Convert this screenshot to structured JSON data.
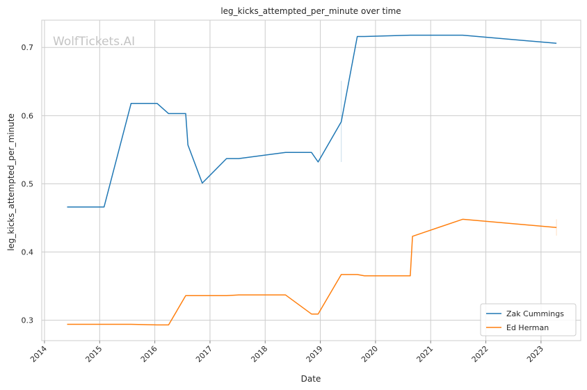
{
  "chart_data": {
    "type": "line",
    "title": "leg_kicks_attempted_per_minute over time",
    "xlabel": "Date",
    "ylabel": "leg_kicks_attempted_per_minute",
    "watermark": "WolfTickets.AI",
    "x_ticks": [
      "2014",
      "2015",
      "2016",
      "2017",
      "2018",
      "2019",
      "2020",
      "2021",
      "2022",
      "2023"
    ],
    "y_ticks": [
      "0.3",
      "0.4",
      "0.5",
      "0.6",
      "0.7"
    ],
    "xlim": [
      2013.95,
      2023.72
    ],
    "ylim": [
      0.27,
      0.74
    ],
    "grid": true,
    "legend_position": "bottom-right",
    "series": [
      {
        "name": "Zak Cummings",
        "color": "#1f77b4",
        "x": [
          2014.41,
          2015.08,
          2015.57,
          2016.04,
          2016.25,
          2016.56,
          2016.6,
          2016.86,
          2017.3,
          2017.52,
          2018.37,
          2018.84,
          2018.96,
          2019.38,
          2019.67,
          2019.8,
          2020.63,
          2021.58,
          2023.28
        ],
        "values": [
          0.466,
          0.466,
          0.618,
          0.618,
          0.603,
          0.603,
          0.557,
          0.501,
          0.537,
          0.537,
          0.546,
          0.546,
          0.532,
          0.591,
          0.716,
          0.716,
          0.718,
          0.718,
          0.706
        ],
        "error_bars": [
          {
            "x": 2019.38,
            "low": 0.532,
            "high": 0.651
          }
        ]
      },
      {
        "name": "Ed Herman",
        "color": "#ff7f0e",
        "x": [
          2014.41,
          2015.57,
          2016.04,
          2016.25,
          2016.56,
          2017.3,
          2017.52,
          2018.37,
          2018.84,
          2018.96,
          2019.38,
          2019.67,
          2019.8,
          2020.63,
          2020.67,
          2021.58,
          2023.28
        ],
        "values": [
          0.294,
          0.294,
          0.293,
          0.293,
          0.336,
          0.336,
          0.337,
          0.337,
          0.309,
          0.309,
          0.367,
          0.367,
          0.365,
          0.365,
          0.423,
          0.448,
          0.436
        ],
        "error_bars": [
          {
            "x": 2023.28,
            "low": 0.424,
            "high": 0.448
          }
        ]
      }
    ]
  }
}
